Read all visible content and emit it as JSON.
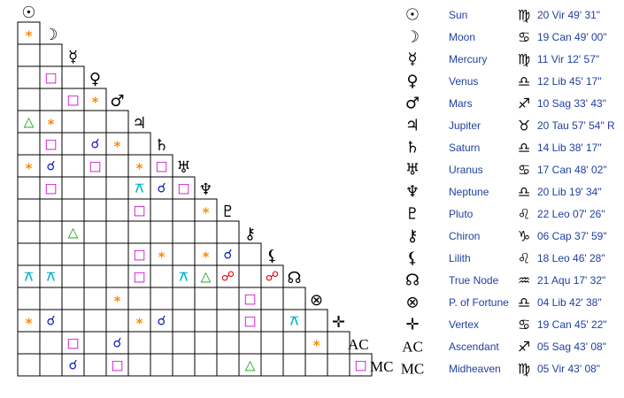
{
  "planets": [
    {
      "symbol": "☉",
      "name": "Sun",
      "sign_symbol": "♍",
      "position": "20 Vir 49' 31\""
    },
    {
      "symbol": "☽",
      "name": "Moon",
      "sign_symbol": "♋",
      "position": "19 Can 49' 00\""
    },
    {
      "symbol": "☿",
      "name": "Mercury",
      "sign_symbol": "♍",
      "position": "11 Vir 12' 57\""
    },
    {
      "symbol": "♀",
      "name": "Venus",
      "sign_symbol": "♎",
      "position": "12 Lib 45' 17\""
    },
    {
      "symbol": "♂",
      "name": "Mars",
      "sign_symbol": "♐",
      "position": "10 Sag 33' 43\""
    },
    {
      "symbol": "♃",
      "name": "Jupiter",
      "sign_symbol": "♉",
      "position": "20 Tau 57' 54\" R"
    },
    {
      "symbol": "♄",
      "name": "Saturn",
      "sign_symbol": "♎",
      "position": "14 Lib 38' 17\""
    },
    {
      "symbol": "♅",
      "name": "Uranus",
      "sign_symbol": "♋",
      "position": "17 Can 48' 02\""
    },
    {
      "symbol": "♆",
      "name": "Neptune",
      "sign_symbol": "♎",
      "position": "20 Lib 19' 34\""
    },
    {
      "symbol": "♇",
      "name": "Pluto",
      "sign_symbol": "♌",
      "position": "22 Leo 07' 26\""
    },
    {
      "symbol": "⚷",
      "name": "Chiron",
      "sign_symbol": "♑",
      "position": "06 Cap 37' 59\""
    },
    {
      "symbol": "⚸",
      "name": "Lilith",
      "sign_symbol": "♌",
      "position": "18 Leo 46' 28\""
    },
    {
      "symbol": "☊",
      "name": "True Node",
      "sign_symbol": "♒",
      "position": "21 Aqu 17' 32\""
    },
    {
      "symbol": "⊗",
      "name": "P. of Fortune",
      "sign_symbol": "♎",
      "position": "04 Lib 42' 38\""
    },
    {
      "symbol": "✛",
      "name": "Vertex",
      "sign_symbol": "♋",
      "position": "19 Can 45' 22\""
    },
    {
      "symbol": "AC",
      "name": "Ascendant",
      "sign_symbol": "♐",
      "position": "05 Sag 43' 08\""
    },
    {
      "symbol": "MC",
      "name": "Midheaven",
      "sign_symbol": "♍",
      "position": "05 Vir 43' 08\""
    }
  ],
  "aspect_colors": {
    "*": "#ff8800",
    "□": "#cc00cc",
    "△": "#00a000",
    "☌": "#1020c0",
    "☍": "#e00000",
    "⚻": "#00b0d0"
  },
  "grid": [
    [
      "*"
    ],
    [
      null,
      null
    ],
    [
      null,
      "□",
      null
    ],
    [
      null,
      null,
      "□",
      "*"
    ],
    [
      "△",
      "*",
      null,
      null,
      null
    ],
    [
      null,
      "□",
      null,
      "☌",
      "*",
      null
    ],
    [
      "*",
      "☌",
      null,
      "□",
      null,
      "*",
      "□"
    ],
    [
      null,
      "□",
      null,
      null,
      null,
      "⚻",
      "☌",
      "□"
    ],
    [
      null,
      null,
      null,
      null,
      null,
      "□",
      null,
      null,
      "*"
    ],
    [
      null,
      null,
      "△",
      null,
      null,
      null,
      null,
      null,
      null,
      null
    ],
    [
      null,
      null,
      null,
      null,
      null,
      "□",
      "*",
      null,
      "*",
      "☌",
      null
    ],
    [
      "⚻",
      "⚻",
      null,
      null,
      null,
      "□",
      null,
      "⚻",
      "△",
      "☍",
      null,
      "☍"
    ],
    [
      null,
      null,
      null,
      null,
      "*",
      null,
      null,
      null,
      null,
      null,
      "□",
      null,
      null
    ],
    [
      "*",
      "☌",
      null,
      null,
      null,
      "*",
      "☌",
      null,
      null,
      null,
      "□",
      null,
      "⚻",
      null
    ],
    [
      null,
      null,
      "□",
      null,
      "☌",
      null,
      null,
      null,
      null,
      null,
      null,
      null,
      null,
      "*",
      null
    ],
    [
      null,
      null,
      "☌",
      null,
      "□",
      null,
      null,
      null,
      null,
      null,
      "△",
      null,
      null,
      null,
      null,
      "□"
    ]
  ]
}
